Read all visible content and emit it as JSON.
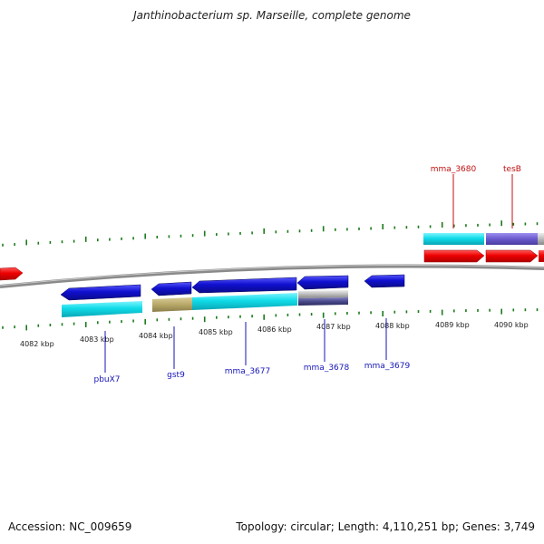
{
  "title": "Janthinobacterium sp. Marseille, complete genome",
  "footer": {
    "accession": "Accession: NC_009659",
    "topology": "Topology: circular; Length: 4,110,251 bp; Genes: 3,749"
  },
  "kbp_labels": [
    "4082 kbp",
    "4083 kbp",
    "4084 kbp",
    "4085 kbp",
    "4086 kbp",
    "4087 kbp",
    "4088 kbp",
    "4089 kbp",
    "4090 kbp"
  ],
  "gene_labels": {
    "pbuX7": "pbuX7",
    "gst9": "gst9",
    "mma_3677": "mma_3677",
    "mma_3678": "mma_3678",
    "mma_3679": "mma_3679",
    "mma_3680": "mma_3680",
    "tesB": "tesB"
  },
  "colors": {
    "forward_cds": "#ee0000",
    "reverse_cds": "#1010d0",
    "backbone": "#8a8a8a",
    "tick": "#1a7a1a",
    "gene_label_reverse": "#1515b8",
    "gene_label_forward": "#c01010"
  }
}
